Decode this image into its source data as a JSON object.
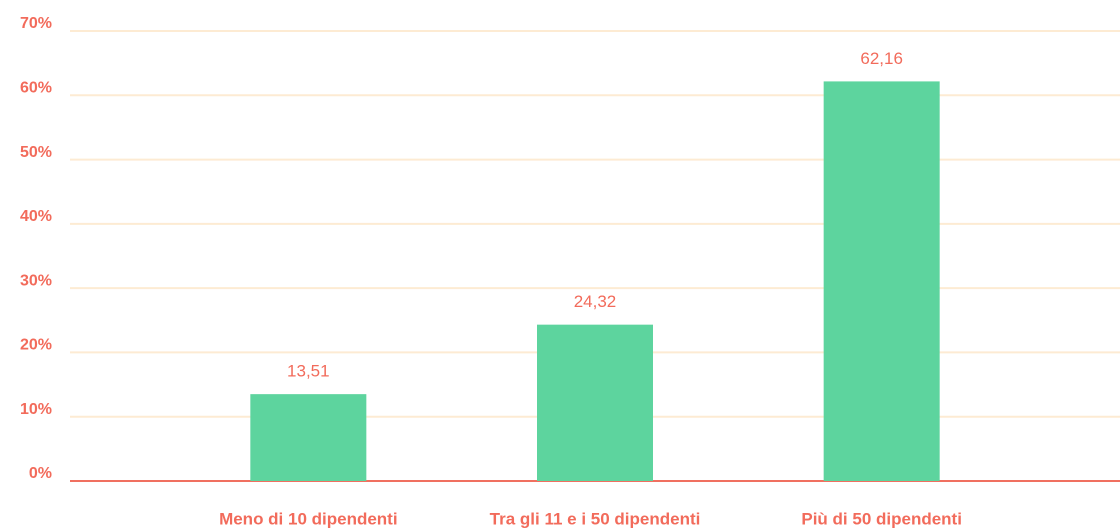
{
  "chart_data": {
    "type": "bar",
    "categories": [
      "Meno di 10 dipendenti",
      "Tra gli 11 e i 50 dipendenti",
      "Più di 50 dipendenti"
    ],
    "values": [
      13.51,
      24.32,
      62.16
    ],
    "value_labels": [
      "13,51",
      "24,32",
      "62,16"
    ],
    "color": "#5dd49e",
    "ylim": [
      0,
      70
    ],
    "yticks": [
      {
        "value": 0,
        "label": "0%"
      },
      {
        "value": 10,
        "label": "10%"
      },
      {
        "value": 20,
        "label": "20%"
      },
      {
        "value": 30,
        "label": "30%"
      },
      {
        "value": 40,
        "label": "40%"
      },
      {
        "value": 50,
        "label": "50%"
      },
      {
        "value": 60,
        "label": "60%"
      },
      {
        "value": 70,
        "label": "70%"
      }
    ],
    "grid": true
  }
}
